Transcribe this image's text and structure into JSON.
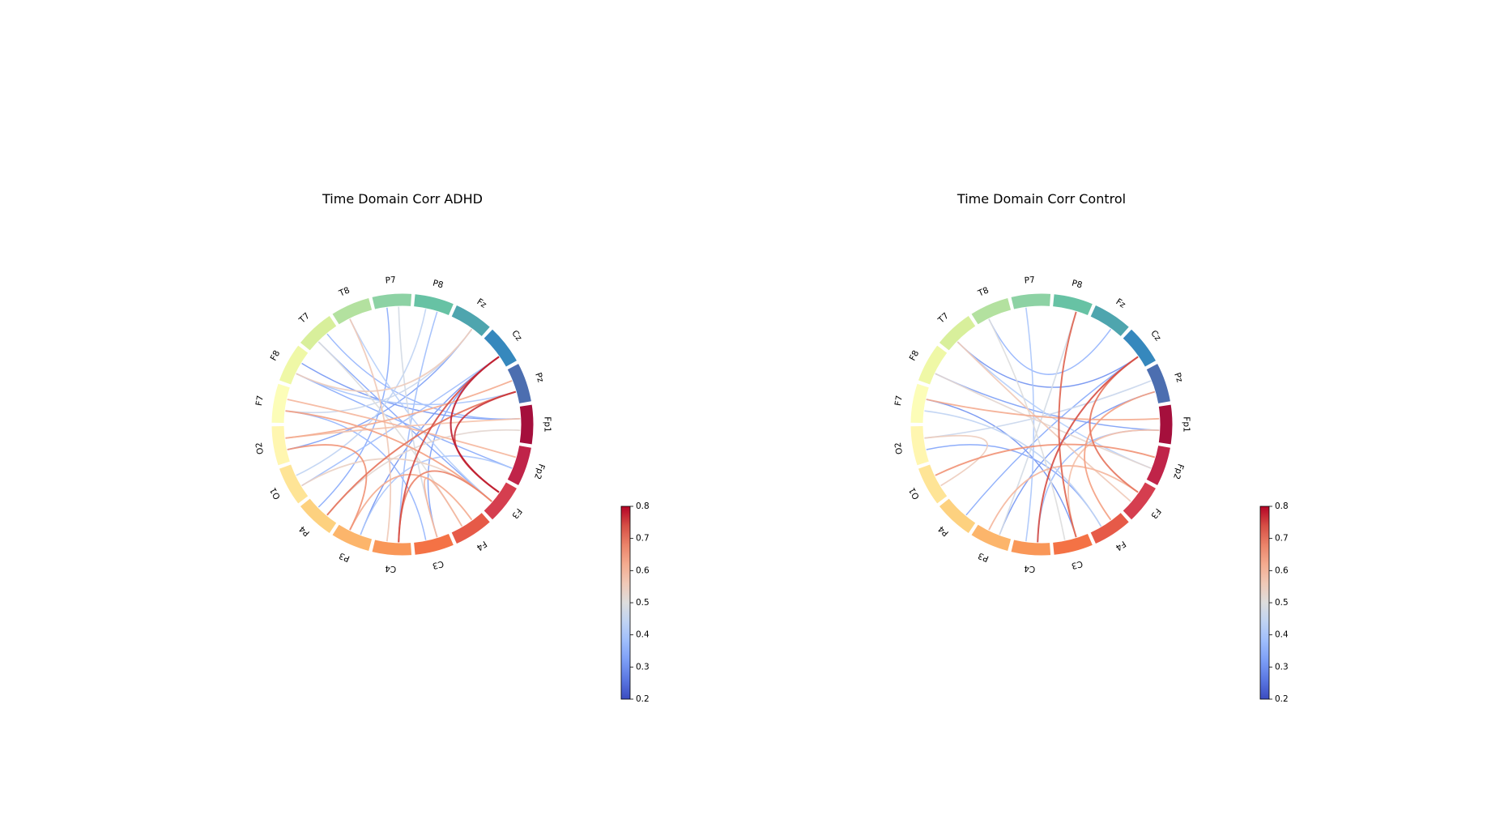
{
  "chart_data": [
    {
      "type": "chord",
      "title": "Time Domain Corr ADHD",
      "nodes": [
        "Fp1",
        "Fp2",
        "F3",
        "F4",
        "C3",
        "C4",
        "P3",
        "P4",
        "O1",
        "O2",
        "F7",
        "F8",
        "T7",
        "T8",
        "P7",
        "P8",
        "Fz",
        "Cz",
        "Pz"
      ],
      "node_colors": [
        "#a50f3c",
        "#c02449",
        "#d53e4f",
        "#e65a48",
        "#f47245",
        "#f99758",
        "#fcb56b",
        "#fdd17f",
        "#fee496",
        "#fff6b0",
        "#fcfdb8",
        "#eff8a6",
        "#d8ef9b",
        "#b3e19f",
        "#8dd2a4",
        "#67c2a4",
        "#4ea5ae",
        "#3688bd",
        "#4c6eb0"
      ],
      "colorbar": {
        "vmin": 0.2,
        "vmax": 0.8,
        "ticks": [
          "0.2",
          "0.3",
          "0.4",
          "0.5",
          "0.6",
          "0.7",
          "0.8"
        ],
        "cmap": "coolwarm"
      },
      "edges": [
        [
          "F3",
          "Cz",
          0.78
        ],
        [
          "F3",
          "Pz",
          0.76
        ],
        [
          "C4",
          "Cz",
          0.74
        ],
        [
          "P4",
          "Pz",
          0.7
        ],
        [
          "C4",
          "F3",
          0.68
        ],
        [
          "O2",
          "P3",
          0.66
        ],
        [
          "F7",
          "F3",
          0.64
        ],
        [
          "Pz",
          "O2",
          0.62
        ],
        [
          "F4",
          "P3",
          0.62
        ],
        [
          "Fp2",
          "F7",
          0.6
        ],
        [
          "C3",
          "F4",
          0.6
        ],
        [
          "Fp1",
          "O2",
          0.58
        ],
        [
          "T8",
          "C4",
          0.56
        ],
        [
          "F8",
          "Fz",
          0.55
        ],
        [
          "O1",
          "F3",
          0.54
        ],
        [
          "P4",
          "Fp1",
          0.52
        ],
        [
          "T7",
          "F4",
          0.5
        ],
        [
          "C3",
          "P7",
          0.48
        ],
        [
          "F7",
          "Fz",
          0.46
        ],
        [
          "P8",
          "O1",
          0.44
        ],
        [
          "T8",
          "F3",
          0.42
        ],
        [
          "F8",
          "Pz",
          0.4
        ],
        [
          "P3",
          "Fp2",
          0.4
        ],
        [
          "O1",
          "Cz",
          0.38
        ],
        [
          "C4",
          "P8",
          0.38
        ],
        [
          "F7",
          "C3",
          0.36
        ],
        [
          "Fp1",
          "T7",
          0.36
        ],
        [
          "F8",
          "Fp2",
          0.34
        ],
        [
          "P7",
          "P4",
          0.34
        ],
        [
          "T7",
          "F3",
          0.33
        ],
        [
          "O2",
          "Fz",
          0.32
        ],
        [
          "C3",
          "Cz",
          0.32
        ],
        [
          "Fp1",
          "F8",
          0.31
        ],
        [
          "P3",
          "Cz",
          0.3
        ]
      ]
    },
    {
      "type": "chord",
      "title": "Time Domain Corr Control",
      "nodes": [
        "Fp1",
        "Fp2",
        "F3",
        "F4",
        "C3",
        "C4",
        "P3",
        "P4",
        "O1",
        "O2",
        "F7",
        "F8",
        "T7",
        "T8",
        "P7",
        "P8",
        "Fz",
        "Cz",
        "Pz"
      ],
      "node_colors": [
        "#a50f3c",
        "#c02449",
        "#d53e4f",
        "#e65a48",
        "#f47245",
        "#f99758",
        "#fcb56b",
        "#fdd17f",
        "#fee496",
        "#fff6b0",
        "#fcfdb8",
        "#eff8a6",
        "#d8ef9b",
        "#b3e19f",
        "#8dd2a4",
        "#67c2a4",
        "#4ea5ae",
        "#3688bd",
        "#4c6eb0"
      ],
      "colorbar": {
        "vmin": 0.2,
        "vmax": 0.8,
        "ticks": [
          "0.2",
          "0.3",
          "0.4",
          "0.5",
          "0.6",
          "0.7",
          "0.8"
        ],
        "cmap": "coolwarm"
      },
      "edges": [
        [
          "C4",
          "Cz",
          0.74
        ],
        [
          "C3",
          "P8",
          0.72
        ],
        [
          "F3",
          "Cz",
          0.7
        ],
        [
          "Fp2",
          "O1",
          0.66
        ],
        [
          "F4",
          "Pz",
          0.64
        ],
        [
          "Fp1",
          "F7",
          0.62
        ],
        [
          "F3",
          "P3",
          0.6
        ],
        [
          "C3",
          "Fp1",
          0.58
        ],
        [
          "T7",
          "F3",
          0.56
        ],
        [
          "O1",
          "O2",
          0.55
        ],
        [
          "F8",
          "Fp2",
          0.52
        ],
        [
          "T8",
          "C3",
          0.5
        ],
        [
          "P3",
          "P8",
          0.48
        ],
        [
          "Pz",
          "O2",
          0.46
        ],
        [
          "F7",
          "F4",
          0.44
        ],
        [
          "T7",
          "Fp2",
          0.42
        ],
        [
          "P7",
          "C4",
          0.4
        ],
        [
          "C4",
          "Fp1",
          0.38
        ],
        [
          "T8",
          "Fz",
          0.36
        ],
        [
          "P4",
          "Cz",
          0.34
        ],
        [
          "O2",
          "F4",
          0.33
        ],
        [
          "F8",
          "Fp1",
          0.32
        ],
        [
          "P3",
          "Pz",
          0.31
        ],
        [
          "T7",
          "Cz",
          0.3
        ],
        [
          "C3",
          "F7",
          0.3
        ]
      ]
    }
  ]
}
